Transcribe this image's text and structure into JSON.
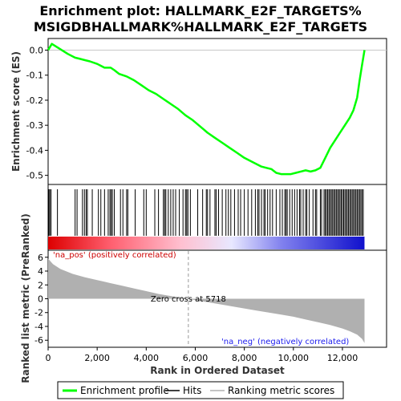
{
  "chart_data": {
    "type": "line",
    "title_line1": "Enrichment plot: HALLMARK_E2F_TARGETS%",
    "title_line2": "MSIGDBHALLMARK%HALLMARK_E2F_TARGETS",
    "es_panel": {
      "ylabel": "Enrichment score (ES)",
      "ylim": [
        -0.53,
        0.04
      ],
      "yticks": [
        0.0,
        -0.1,
        -0.2,
        -0.3,
        -0.4,
        -0.5
      ],
      "ytick_labels": [
        "0.0",
        "-0.1",
        "-0.2",
        "-0.3",
        "-0.4",
        "-0.5"
      ],
      "series": [
        {
          "name": "Enrichment profile",
          "color": "#00ff00",
          "x": [
            0,
            150,
            400,
            800,
            1100,
            1300,
            1500,
            1700,
            2000,
            2300,
            2550,
            2700,
            2900,
            3200,
            3500,
            3800,
            4100,
            4400,
            4700,
            5000,
            5300,
            5600,
            5900,
            6200,
            6500,
            6800,
            7100,
            7400,
            7700,
            8000,
            8300,
            8500,
            8700,
            8900,
            9100,
            9300,
            9500,
            9700,
            9900,
            10100,
            10300,
            10500,
            10700,
            10900,
            11100,
            11300,
            11500,
            11700,
            11900,
            12100,
            12300,
            12450,
            12600,
            12700,
            12800,
            12900
          ],
          "y": [
            0.0,
            0.025,
            0.01,
            -0.015,
            -0.03,
            -0.035,
            -0.04,
            -0.045,
            -0.055,
            -0.07,
            -0.07,
            -0.08,
            -0.095,
            -0.105,
            -0.12,
            -0.14,
            -0.16,
            -0.175,
            -0.195,
            -0.215,
            -0.235,
            -0.26,
            -0.28,
            -0.305,
            -0.33,
            -0.35,
            -0.37,
            -0.39,
            -0.41,
            -0.43,
            -0.445,
            -0.455,
            -0.465,
            -0.47,
            -0.475,
            -0.49,
            -0.495,
            -0.495,
            -0.495,
            -0.49,
            -0.485,
            -0.48,
            -0.485,
            -0.48,
            -0.47,
            -0.43,
            -0.39,
            -0.36,
            -0.33,
            -0.3,
            -0.27,
            -0.24,
            -0.19,
            -0.12,
            -0.06,
            0.0
          ]
        }
      ]
    },
    "hits": {
      "name": "Hits",
      "positions": [
        30,
        70,
        120,
        380,
        1100,
        1180,
        1400,
        1480,
        1550,
        1600,
        1800,
        2050,
        2150,
        2300,
        2450,
        2520,
        2570,
        2620,
        2700,
        2950,
        3050,
        3200,
        3250,
        3550,
        3900,
        4000,
        4350,
        4500,
        4700,
        4750,
        4800,
        4900,
        5000,
        5100,
        5200,
        5350,
        5500,
        5600,
        5650,
        5700,
        5800,
        6100,
        6300,
        6450,
        6500,
        6600,
        6800,
        6850,
        6950,
        7100,
        7250,
        7350,
        7450,
        7600,
        7750,
        7850,
        8000,
        8150,
        8300,
        8450,
        8550,
        8600,
        8700,
        8800,
        8850,
        8950,
        9050,
        9150,
        9300,
        9450,
        9550,
        9650,
        9700,
        9750,
        9850,
        9950,
        10050,
        10150,
        10250,
        10300,
        10400,
        10500,
        10550,
        10650,
        10800,
        10900,
        10950,
        11100,
        11150,
        11250,
        11300,
        11350,
        11400,
        11450,
        11500,
        11550,
        11600,
        11650,
        11700,
        11750,
        11800,
        11850,
        11900,
        11950,
        12000,
        12050,
        12100,
        12150,
        12200,
        12250,
        12300,
        12350,
        12400,
        12450,
        12500,
        12550,
        12600,
        12650,
        12700,
        12750,
        12800,
        12850
      ]
    },
    "heatmap_bar": {
      "colors": [
        "#dd0000",
        "#ff6070",
        "#ffc0d0",
        "#e8e8ff",
        "#8080ee",
        "#1010cc"
      ],
      "stops": [
        0,
        0.2,
        0.42,
        0.58,
        0.74,
        1.0
      ]
    },
    "rank_panel": {
      "name": "Ranking metric scores",
      "ylabel": "Ranked list metric (PreRanked)",
      "xlabel": "Rank in Ordered Dataset",
      "ylim": [
        -6.9,
        6.9
      ],
      "yticks": [
        6,
        4,
        2,
        0,
        -2,
        -4,
        -6
      ],
      "ytick_labels": [
        "6",
        "4",
        "2",
        "0",
        "-2",
        "-4",
        "-6"
      ],
      "x": [
        0,
        200,
        500,
        1000,
        1500,
        2000,
        2500,
        3000,
        3500,
        4000,
        4500,
        5000,
        5500,
        5718,
        6000,
        6500,
        7000,
        7500,
        8000,
        8500,
        9000,
        9500,
        10000,
        10500,
        11000,
        11500,
        12000,
        12300,
        12600,
        12800,
        12900
      ],
      "y": [
        5.8,
        5.0,
        4.3,
        3.6,
        3.1,
        2.7,
        2.3,
        1.9,
        1.5,
        1.1,
        0.7,
        0.4,
        0.1,
        0.0,
        -0.2,
        -0.5,
        -0.8,
        -1.1,
        -1.4,
        -1.7,
        -2.0,
        -2.3,
        -2.6,
        -3.0,
        -3.4,
        -3.8,
        -4.3,
        -4.7,
        -5.2,
        -5.8,
        -6.4
      ],
      "color": "#b0b0b0"
    },
    "xlim": [
      0,
      13800
    ],
    "xticks": [
      0,
      2000,
      4000,
      6000,
      8000,
      10000,
      12000
    ],
    "xtick_labels": [
      "0",
      "2,000",
      "4,000",
      "6,000",
      "8,000",
      "10,000",
      "12,000"
    ],
    "total_rank": 12900,
    "zero_cross": 5718,
    "zero_cross_label": "Zero cross at 5718",
    "pos_label": "'na_pos' (positively correlated)",
    "neg_label": "'na_neg' (negatively correlated)",
    "legend": [
      {
        "label": "Enrichment profile",
        "color": "#00ff00"
      },
      {
        "label": "Hits",
        "color": "#000000"
      },
      {
        "label": "Ranking metric scores",
        "color": "#b0b0b0"
      }
    ]
  }
}
